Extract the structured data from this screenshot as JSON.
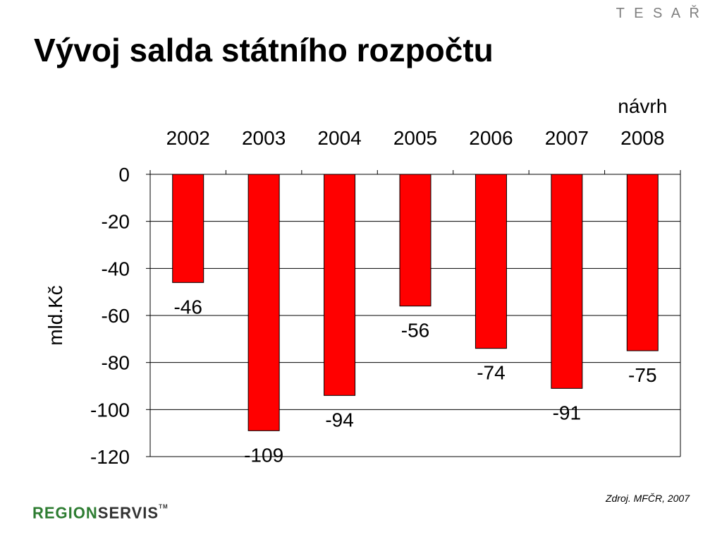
{
  "brand_top": "T E S A Ř",
  "title": "Vývoj salda státního rozpočtu",
  "source": "Zdroj. MFČR, 2007",
  "logo": {
    "part1": "REGION",
    "part2": "SERVIS",
    "tm": "TM"
  },
  "colors": {
    "bar": "#ff0000",
    "grid": "#000000",
    "green": "#2e7d32"
  },
  "chart_data": {
    "type": "bar",
    "categories": [
      "2002",
      "2003",
      "2004",
      "2005",
      "2006",
      "2007",
      "2008"
    ],
    "category_prefix": [
      "",
      "",
      "",
      "",
      "",
      "",
      "návrh"
    ],
    "values": [
      -46,
      -109,
      -94,
      -56,
      -74,
      -91,
      -75
    ],
    "data_labels": [
      "-46",
      "-109",
      "-94",
      "-56",
      "-74",
      "-91",
      "-75"
    ],
    "ylabel": "mld.Kč",
    "ylim": [
      -120,
      0
    ],
    "yticks": [
      0,
      -20,
      -40,
      -60,
      -80,
      -100,
      -120
    ],
    "grid": true,
    "legend": "none"
  }
}
